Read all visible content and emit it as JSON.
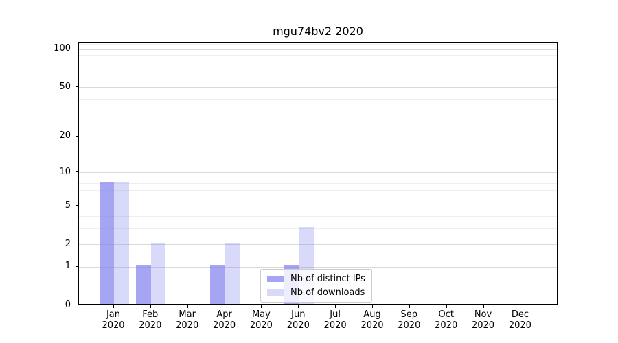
{
  "chart_data": {
    "type": "bar",
    "title": "mgu74bv2 2020",
    "categories": [
      "Jan",
      "Feb",
      "Mar",
      "Apr",
      "May",
      "Jun",
      "Jul",
      "Aug",
      "Sep",
      "Oct",
      "Nov",
      "Dec"
    ],
    "category_year": "2020",
    "series": [
      {
        "name": "Nb of distinct IPs",
        "color": "rgba(130,130,240,0.72)",
        "values": [
          8,
          1,
          0,
          1,
          0,
          1,
          0,
          0,
          0,
          0,
          0,
          0
        ]
      },
      {
        "name": "Nb of downloads",
        "color": "rgba(130,130,240,0.30)",
        "values": [
          8,
          2,
          0,
          2,
          0,
          3,
          0,
          0,
          0,
          0,
          0,
          0
        ]
      }
    ],
    "xlabel": "",
    "ylabel": "",
    "yscale": "log1p",
    "ylim": [
      0,
      113
    ],
    "yticks": [
      0,
      1,
      2,
      5,
      10,
      20,
      50,
      100
    ],
    "yticks_minor": [
      3,
      4,
      6,
      7,
      8,
      9,
      30,
      40,
      60,
      70,
      80,
      90,
      110
    ],
    "grid": true,
    "legend_position": "lower center",
    "colors": {
      "grid_major": "#d9d9d9",
      "grid_minor": "#efefef",
      "axis": "#000000",
      "text": "#000000",
      "legend_border": "#cccccc"
    }
  }
}
